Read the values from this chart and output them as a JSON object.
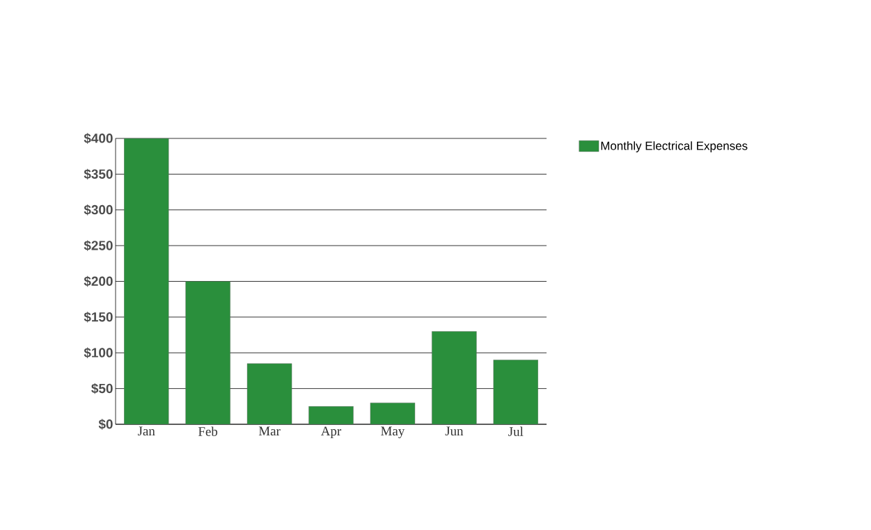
{
  "chart_data": {
    "type": "bar",
    "categories": [
      "Jan",
      "Feb",
      "Mar",
      "Apr",
      "May",
      "Jun",
      "Jul"
    ],
    "series": [
      {
        "name": "Monthly Electrical Expenses",
        "color": "#2a8f3c",
        "values": [
          400,
          200,
          85,
          25,
          30,
          130,
          90
        ]
      }
    ],
    "ylim": [
      0,
      400
    ],
    "yticks": [
      {
        "value": 0,
        "label": "$0"
      },
      {
        "value": 50,
        "label": "$50"
      },
      {
        "value": 100,
        "label": "$100"
      },
      {
        "value": 150,
        "label": "$150"
      },
      {
        "value": 200,
        "label": "$200"
      },
      {
        "value": 250,
        "label": "$250"
      },
      {
        "value": 300,
        "label": "$300"
      },
      {
        "value": 350,
        "label": "$350"
      },
      {
        "value": 400,
        "label": "$400"
      }
    ],
    "grid": "y",
    "legend": "top right"
  }
}
